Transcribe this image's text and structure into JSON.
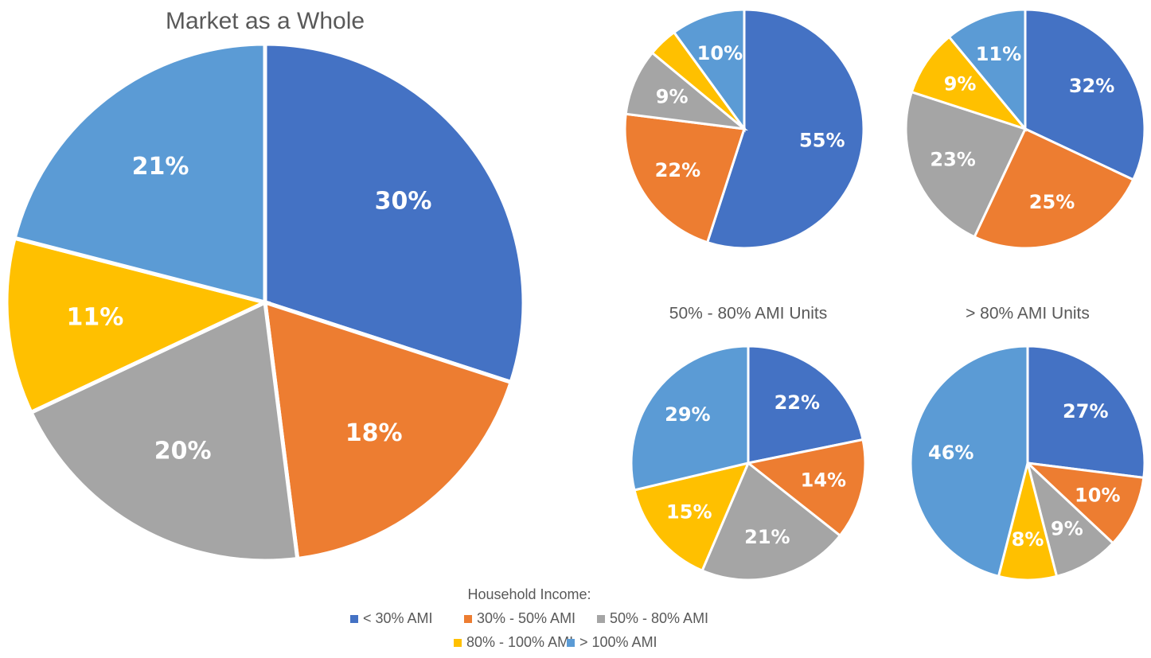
{
  "chart_data": [
    {
      "type": "pie",
      "title": "Market as a Whole",
      "legend_title": "Household Income:",
      "categories": [
        "< 30% AMI",
        "30% - 50% AMI",
        "50% - 80% AMI",
        "80% - 100% AMI",
        "> 100% AMI"
      ],
      "colors": [
        "#4472c4",
        "#ed7d31",
        "#a5a5a5",
        "#ffc000",
        "#5b9bd5"
      ],
      "values": [
        30,
        18,
        20,
        11,
        21
      ],
      "value_labels": [
        "30%",
        "18%",
        "20%",
        "11%",
        "21%"
      ]
    },
    {
      "type": "pie",
      "categories": [
        "< 30% AMI",
        "30% - 50% AMI",
        "50% - 80% AMI",
        "80% - 100% AMI",
        "> 100% AMI"
      ],
      "colors": [
        "#4472c4",
        "#ed7d31",
        "#a5a5a5",
        "#ffc000",
        "#5b9bd5"
      ],
      "values": [
        55,
        22,
        9,
        4,
        10
      ],
      "value_labels": [
        "55%",
        "22%",
        "9%",
        null,
        "10%"
      ]
    },
    {
      "type": "pie",
      "categories": [
        "< 30% AMI",
        "30% - 50% AMI",
        "50% - 80% AMI",
        "80% - 100% AMI",
        "> 100% AMI"
      ],
      "colors": [
        "#4472c4",
        "#ed7d31",
        "#a5a5a5",
        "#ffc000",
        "#5b9bd5"
      ],
      "values": [
        32,
        25,
        23,
        9,
        11
      ],
      "value_labels": [
        "32%",
        "25%",
        "23%",
        "9%",
        "11%"
      ]
    },
    {
      "type": "pie",
      "title": "50% - 80% AMI Units",
      "categories": [
        "< 30% AMI",
        "30% - 50% AMI",
        "50% - 80% AMI",
        "80% - 100% AMI",
        "> 100% AMI"
      ],
      "colors": [
        "#4472c4",
        "#ed7d31",
        "#a5a5a5",
        "#ffc000",
        "#5b9bd5"
      ],
      "values": [
        22,
        14,
        21,
        15,
        29
      ],
      "value_labels": [
        "22%",
        "14%",
        "21%",
        "15%",
        "29%"
      ]
    },
    {
      "type": "pie",
      "title": "> 80% AMI Units",
      "categories": [
        "< 30% AMI",
        "30% - 50% AMI",
        "50% - 80% AMI",
        "80% - 100% AMI",
        "> 100% AMI"
      ],
      "colors": [
        "#4472c4",
        "#ed7d31",
        "#a5a5a5",
        "#ffc000",
        "#5b9bd5"
      ],
      "values": [
        27,
        10,
        9,
        8,
        46
      ],
      "value_labels": [
        "27%",
        "10%",
        "9%",
        "8%",
        "46%"
      ]
    }
  ]
}
